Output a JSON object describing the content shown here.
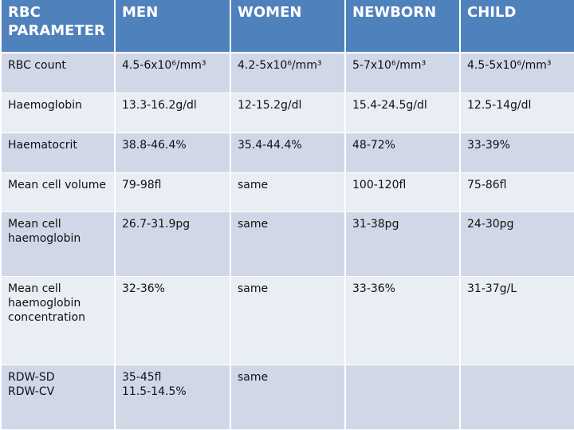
{
  "table": {
    "header": [
      "RBC PARAMETER",
      "MEN",
      "WOMEN",
      "NEWBORN",
      "CHILD"
    ],
    "rows": [
      [
        "RBC count",
        "4.5-6x10⁶/mm³",
        "4.2-5x10⁶/mm³",
        "5-7x10⁶/mm³",
        "4.5-5x10⁶/mm³"
      ],
      [
        "Haemoglobin",
        "13.3-16.2g/dl",
        "12-15.2g/dl",
        "15.4-24.5g/dl",
        "12.5-14g/dl"
      ],
      [
        "Haematocrit",
        "38.8-46.4%",
        "35.4-44.4%",
        "48-72%",
        "33-39%"
      ],
      [
        "Mean cell volume",
        "79-98fl",
        "same",
        "100-120fl",
        "75-86fl"
      ],
      [
        "Mean cell haemoglobin",
        "26.7-31.9pg",
        "same",
        "31-38pg",
        "24-30pg"
      ],
      [
        "Mean cell haemoglobin concentration",
        "32-36%",
        "same",
        "33-36%",
        "31-37g/L"
      ],
      [
        "RDW-SD\nRDW-CV",
        "35-45fl\n11.5-14.5%",
        "same"
      ]
    ]
  }
}
